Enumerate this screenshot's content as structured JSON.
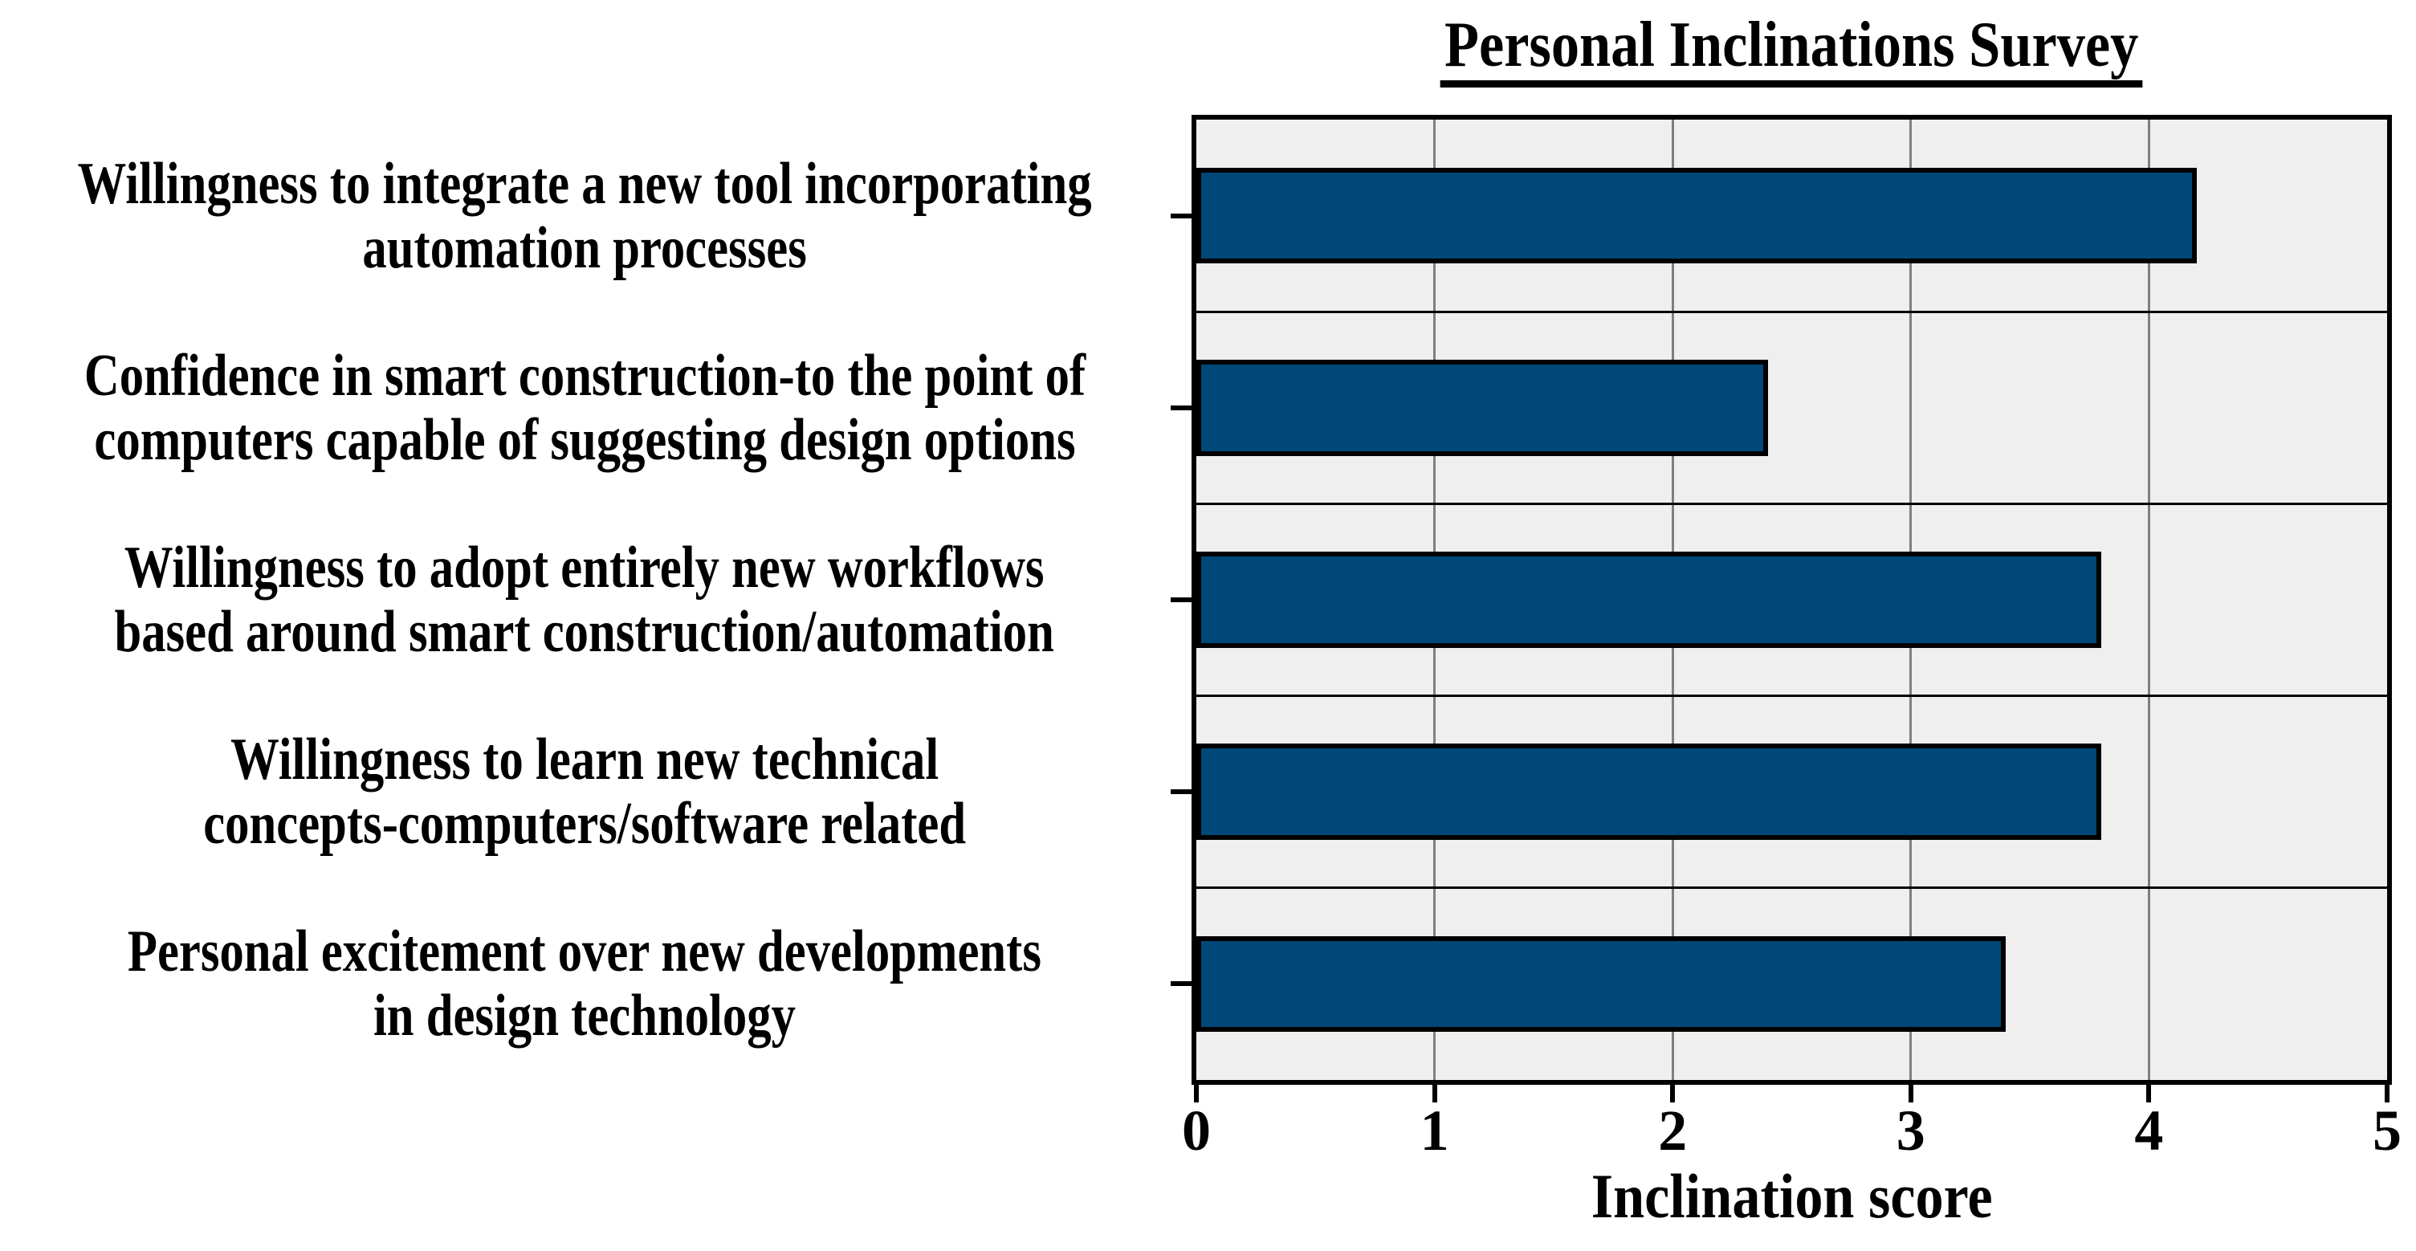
{
  "chart_data": {
    "type": "bar",
    "orientation": "horizontal",
    "title": "Personal Inclinations Survey",
    "xlabel": "Inclination score",
    "categories": [
      "Willingness to integrate a new tool incorporating automation processes",
      "Confidence in smart construction-to the point of computers capable of suggesting design options",
      "Willingness to adopt entirely new workflows based around smart construction/automation",
      "Willingness to learn new technical concepts-computers/software related",
      "Personal excitement over new developments in design technology"
    ],
    "category_lines": [
      [
        "Willingness to integrate a new tool incorporating",
        "automation processes"
      ],
      [
        "Confidence in smart construction-to the point of",
        "computers capable of suggesting design options"
      ],
      [
        "Willingness to adopt entirely new workflows",
        "based around smart construction/automation"
      ],
      [
        "Willingness to learn new technical",
        "concepts-computers/software related"
      ],
      [
        "Personal excitement over new developments",
        "in design technology"
      ]
    ],
    "values": [
      4.2,
      2.4,
      3.8,
      3.8,
      3.4
    ],
    "xlim": [
      0,
      5
    ],
    "xticks": [
      0,
      1,
      2,
      3,
      4,
      5
    ],
    "grid": true,
    "legend": "none",
    "colors": {
      "bar_fill": "#004878",
      "bar_border": "#000000",
      "plot_background": "#efefef",
      "gridline": "#7f7f7f",
      "row_separator": "#000000",
      "frame": "#000000",
      "text": "#000000",
      "page_background": "#ffffff"
    }
  }
}
